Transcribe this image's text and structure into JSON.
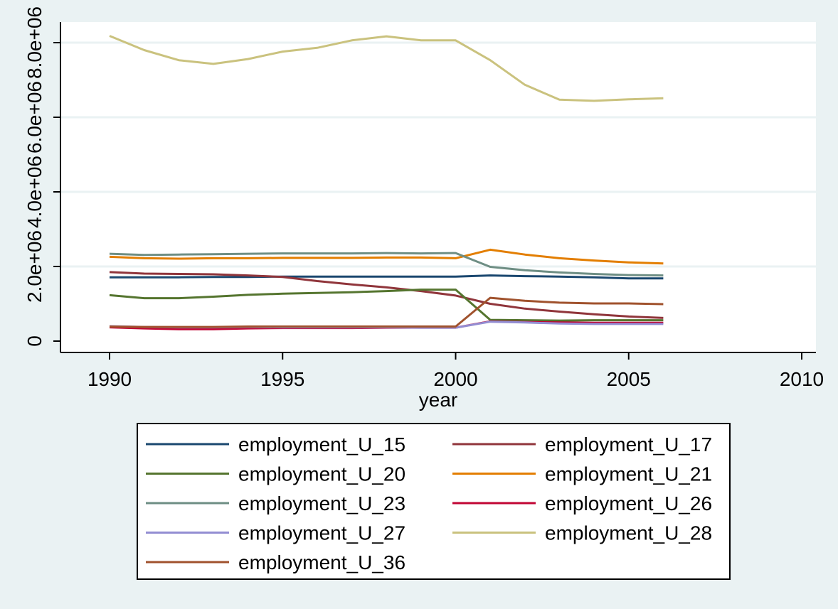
{
  "chart_data": {
    "type": "line",
    "xlabel": "year",
    "ylabel": "",
    "xlim": [
      1988.6,
      2010.8
    ],
    "ylim": [
      -400000,
      8500000
    ],
    "xticks": [
      1990,
      1995,
      2000,
      2005,
      2010
    ],
    "xtick_labels": [
      "1990",
      "1995",
      "2000",
      "2005",
      "2010"
    ],
    "yticks": [
      0,
      2000000,
      4000000,
      6000000,
      8000000
    ],
    "ytick_labels": [
      "0",
      "2.0e+06",
      "4.0e+06",
      "6.0e+06",
      "8.0e+06"
    ],
    "grid": true,
    "legend_position": "bottom",
    "x": [
      1990,
      1991,
      1992,
      1993,
      1994,
      1995,
      1996,
      1997,
      1998,
      1999,
      2000,
      2001,
      2002,
      2003,
      2004,
      2005,
      2006
    ],
    "series": [
      {
        "name": "employment_U_15",
        "color": "#1a476f",
        "values": [
          1710000,
          1710000,
          1710000,
          1720000,
          1720000,
          1730000,
          1730000,
          1730000,
          1730000,
          1730000,
          1730000,
          1760000,
          1740000,
          1730000,
          1710000,
          1680000,
          1680000
        ]
      },
      {
        "name": "employment_U_17",
        "color": "#90353b",
        "values": [
          1850000,
          1810000,
          1800000,
          1790000,
          1760000,
          1720000,
          1610000,
          1520000,
          1440000,
          1340000,
          1220000,
          1000000,
          870000,
          790000,
          720000,
          660000,
          620000
        ]
      },
      {
        "name": "employment_U_20",
        "color": "#55752f",
        "values": [
          1230000,
          1150000,
          1150000,
          1190000,
          1240000,
          1270000,
          1290000,
          1310000,
          1340000,
          1380000,
          1380000,
          570000,
          560000,
          550000,
          560000,
          560000,
          560000
        ]
      },
      {
        "name": "employment_U_21",
        "color": "#e37e00",
        "values": [
          2260000,
          2220000,
          2210000,
          2220000,
          2220000,
          2230000,
          2230000,
          2230000,
          2240000,
          2240000,
          2220000,
          2450000,
          2320000,
          2220000,
          2160000,
          2110000,
          2080000
        ]
      },
      {
        "name": "employment_U_23",
        "color": "#6e8e84",
        "values": [
          2340000,
          2310000,
          2320000,
          2330000,
          2340000,
          2350000,
          2350000,
          2350000,
          2360000,
          2350000,
          2360000,
          1990000,
          1900000,
          1840000,
          1800000,
          1770000,
          1760000
        ]
      },
      {
        "name": "employment_U_26",
        "color": "#c10534",
        "values": [
          370000,
          340000,
          320000,
          320000,
          340000,
          350000,
          350000,
          350000,
          360000,
          360000,
          360000,
          530000,
          510000,
          500000,
          490000,
          490000,
          490000
        ]
      },
      {
        "name": "employment_U_27",
        "color": "#938dd2",
        "values": [
          400000,
          380000,
          370000,
          370000,
          380000,
          370000,
          370000,
          370000,
          370000,
          360000,
          360000,
          520000,
          500000,
          470000,
          460000,
          460000,
          460000
        ]
      },
      {
        "name": "employment_U_28",
        "color": "#cac27e",
        "values": [
          8180000,
          7800000,
          7530000,
          7430000,
          7560000,
          7760000,
          7860000,
          8060000,
          8170000,
          8060000,
          8060000,
          7530000,
          6870000,
          6470000,
          6440000,
          6480000,
          6510000
        ]
      },
      {
        "name": "employment_U_36",
        "color": "#a0522d",
        "values": [
          390000,
          380000,
          380000,
          380000,
          390000,
          390000,
          390000,
          390000,
          390000,
          390000,
          390000,
          1160000,
          1080000,
          1030000,
          1010000,
          1010000,
          990000
        ]
      }
    ]
  }
}
